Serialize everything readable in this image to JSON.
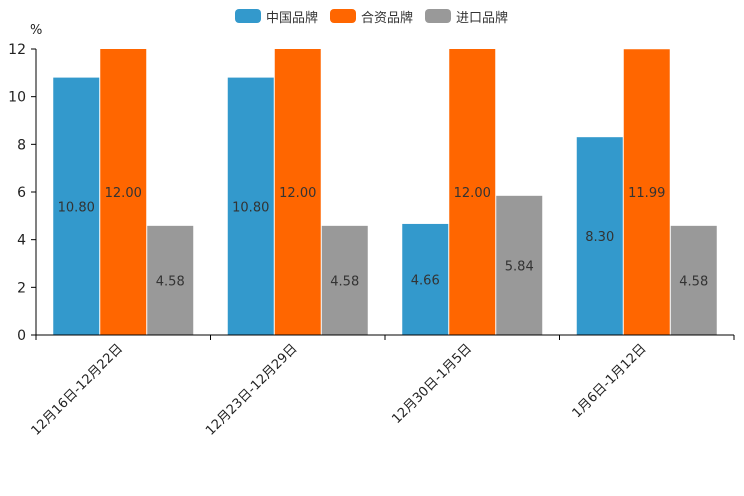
{
  "chart_data": {
    "type": "bar",
    "unit": "%",
    "categories": [
      "12月16日-12月22日",
      "12月23日-12月29日",
      "12月30日-1月5日",
      "1月6日-1月12日"
    ],
    "series": [
      {
        "name": "中国品牌",
        "color": "#3399cc",
        "values": [
          10.8,
          10.8,
          4.66,
          8.3
        ],
        "labels": [
          "10.80",
          "10.80",
          "4.66",
          "8.30"
        ]
      },
      {
        "name": "合资品牌",
        "color": "#ff6600",
        "values": [
          12.0,
          12.0,
          12.0,
          11.99
        ],
        "labels": [
          "12.00",
          "12.00",
          "12.00",
          "11.99"
        ]
      },
      {
        "name": "进口品牌",
        "color": "#999999",
        "values": [
          4.58,
          4.58,
          5.84,
          4.58
        ],
        "labels": [
          "4.58",
          "4.58",
          "5.84",
          "4.58"
        ]
      }
    ],
    "ylim": [
      0,
      12
    ],
    "yticks": [
      "0",
      "2",
      "4",
      "6",
      "8",
      "10",
      "12"
    ],
    "legend_position": "top-center"
  }
}
